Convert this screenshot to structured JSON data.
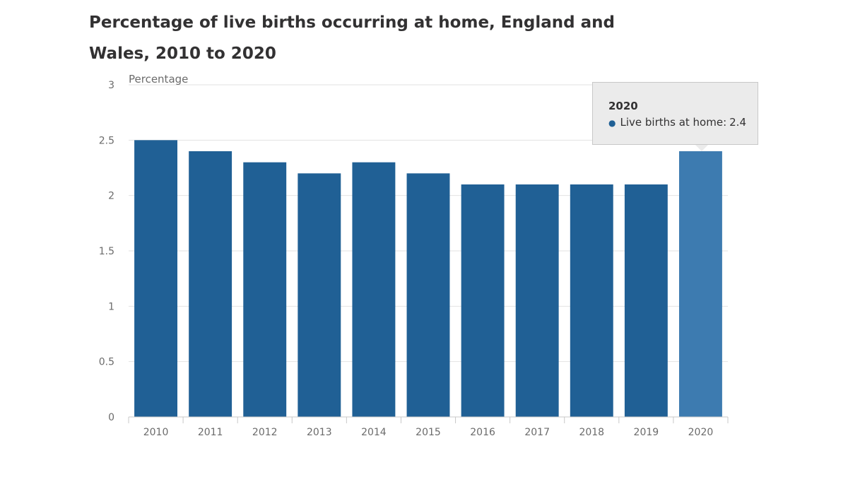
{
  "chart_data": {
    "type": "bar",
    "title": "Percentage of live births occurring at home, England and Wales, 2010 to 2020",
    "ylabel": "Percentage",
    "xlabel": "",
    "categories": [
      "2010",
      "2011",
      "2012",
      "2013",
      "2014",
      "2015",
      "2016",
      "2017",
      "2018",
      "2019",
      "2020"
    ],
    "series": [
      {
        "name": "Live births at home",
        "values": [
          2.5,
          2.4,
          2.3,
          2.2,
          2.3,
          2.2,
          2.1,
          2.1,
          2.1,
          2.1,
          2.4
        ]
      }
    ],
    "ylim": [
      0,
      3
    ],
    "yticks": [
      "0",
      "0.5",
      "1",
      "1.5",
      "2",
      "2.5",
      "3"
    ],
    "grid": true,
    "colors": {
      "bar": "#206095",
      "bar_highlight": "#3d7bb0",
      "grid": "#e2e2e2",
      "axis": "#c8c8c8"
    },
    "highlighted_category": "2020"
  },
  "tooltip": {
    "title": "2020",
    "series_label": "Live births at home:",
    "value": "2.4"
  }
}
